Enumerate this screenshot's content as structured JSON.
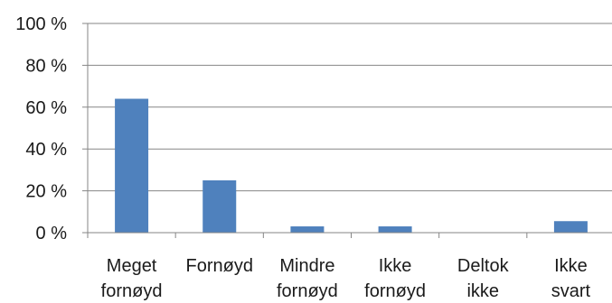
{
  "chart_data": {
    "type": "bar",
    "categories": [
      [
        "Meget",
        "fornøyd"
      ],
      [
        "Fornøyd"
      ],
      [
        "Mindre",
        "fornøyd"
      ],
      [
        "Ikke",
        "fornøyd"
      ],
      [
        "Deltok",
        "ikke"
      ],
      [
        "Ikke",
        "svart"
      ]
    ],
    "values": [
      64,
      25,
      3,
      3,
      0,
      5.5
    ],
    "yticks": [
      "0 %",
      "20 %",
      "40 %",
      "60 %",
      "80 %",
      "100 %"
    ],
    "ylim": [
      0,
      100
    ],
    "grid": true,
    "legend": "none",
    "bar_color": "#4f81bd",
    "grid_color": "#868686",
    "axis_color": "#868686"
  }
}
